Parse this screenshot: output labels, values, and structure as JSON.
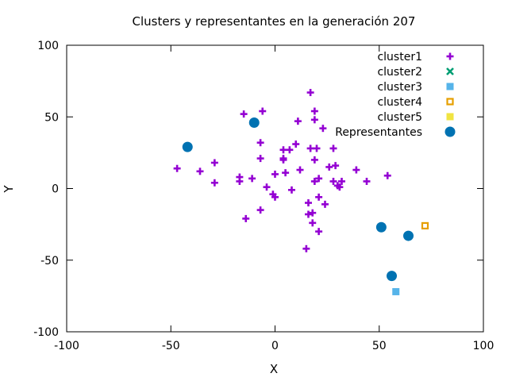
{
  "chart_data": {
    "type": "scatter",
    "title": "Clusters y representantes en la generación 207",
    "xlabel": "X",
    "ylabel": "Y",
    "xlim": [
      -100,
      100
    ],
    "ylim": [
      -100,
      100
    ],
    "xticks": [
      -100,
      -50,
      0,
      50,
      100
    ],
    "yticks": [
      -100,
      -50,
      0,
      50,
      100
    ],
    "grid": false,
    "legend_position": "top-right",
    "series": [
      {
        "name": "cluster1",
        "marker": "plus",
        "color": "#9400d3",
        "points": [
          [
            17,
            67
          ],
          [
            -6,
            54
          ],
          [
            -15,
            52
          ],
          [
            19,
            54
          ],
          [
            19,
            48
          ],
          [
            11,
            47
          ],
          [
            23,
            42
          ],
          [
            -7,
            32
          ],
          [
            10,
            31
          ],
          [
            4,
            27
          ],
          [
            7,
            27
          ],
          [
            17,
            28
          ],
          [
            20,
            28
          ],
          [
            28,
            28
          ],
          [
            -7,
            21
          ],
          [
            4,
            21
          ],
          [
            4,
            20
          ],
          [
            19,
            20
          ],
          [
            -29,
            18
          ],
          [
            -47,
            14
          ],
          [
            -36,
            12
          ],
          [
            12,
            13
          ],
          [
            5,
            11
          ],
          [
            29,
            16
          ],
          [
            26,
            15
          ],
          [
            39,
            13
          ],
          [
            0,
            10
          ],
          [
            -11,
            7
          ],
          [
            -17,
            8
          ],
          [
            -17,
            5
          ],
          [
            19,
            5
          ],
          [
            21,
            7
          ],
          [
            28,
            5
          ],
          [
            32,
            5
          ],
          [
            30,
            2
          ],
          [
            31,
            1
          ],
          [
            44,
            5
          ],
          [
            54,
            9
          ],
          [
            -29,
            4
          ],
          [
            -4,
            1
          ],
          [
            8,
            -1
          ],
          [
            -1,
            -4
          ],
          [
            0,
            -6
          ],
          [
            21,
            -6
          ],
          [
            16,
            -10
          ],
          [
            24,
            -11
          ],
          [
            16,
            -18
          ],
          [
            18,
            -17
          ],
          [
            -14,
            -21
          ],
          [
            -7,
            -15
          ],
          [
            18,
            -24
          ],
          [
            21,
            -30
          ],
          [
            15,
            -42
          ]
        ]
      },
      {
        "name": "cluster2",
        "marker": "cross",
        "color": "#009e73",
        "points": []
      },
      {
        "name": "cluster3",
        "marker": "square",
        "color": "#56b4e9",
        "points": [
          [
            58,
            -72
          ]
        ]
      },
      {
        "name": "cluster4",
        "marker": "open-square",
        "color": "#e69f00",
        "points": [
          [
            72,
            -26
          ]
        ]
      },
      {
        "name": "cluster5",
        "marker": "square",
        "color": "#f0e442",
        "points": []
      },
      {
        "name": "Representantes",
        "marker": "circle",
        "color": "#0072b2",
        "points": [
          [
            -42,
            29
          ],
          [
            -10,
            46
          ],
          [
            51,
            -27
          ],
          [
            56,
            -61
          ],
          [
            64,
            -33
          ]
        ]
      }
    ]
  }
}
